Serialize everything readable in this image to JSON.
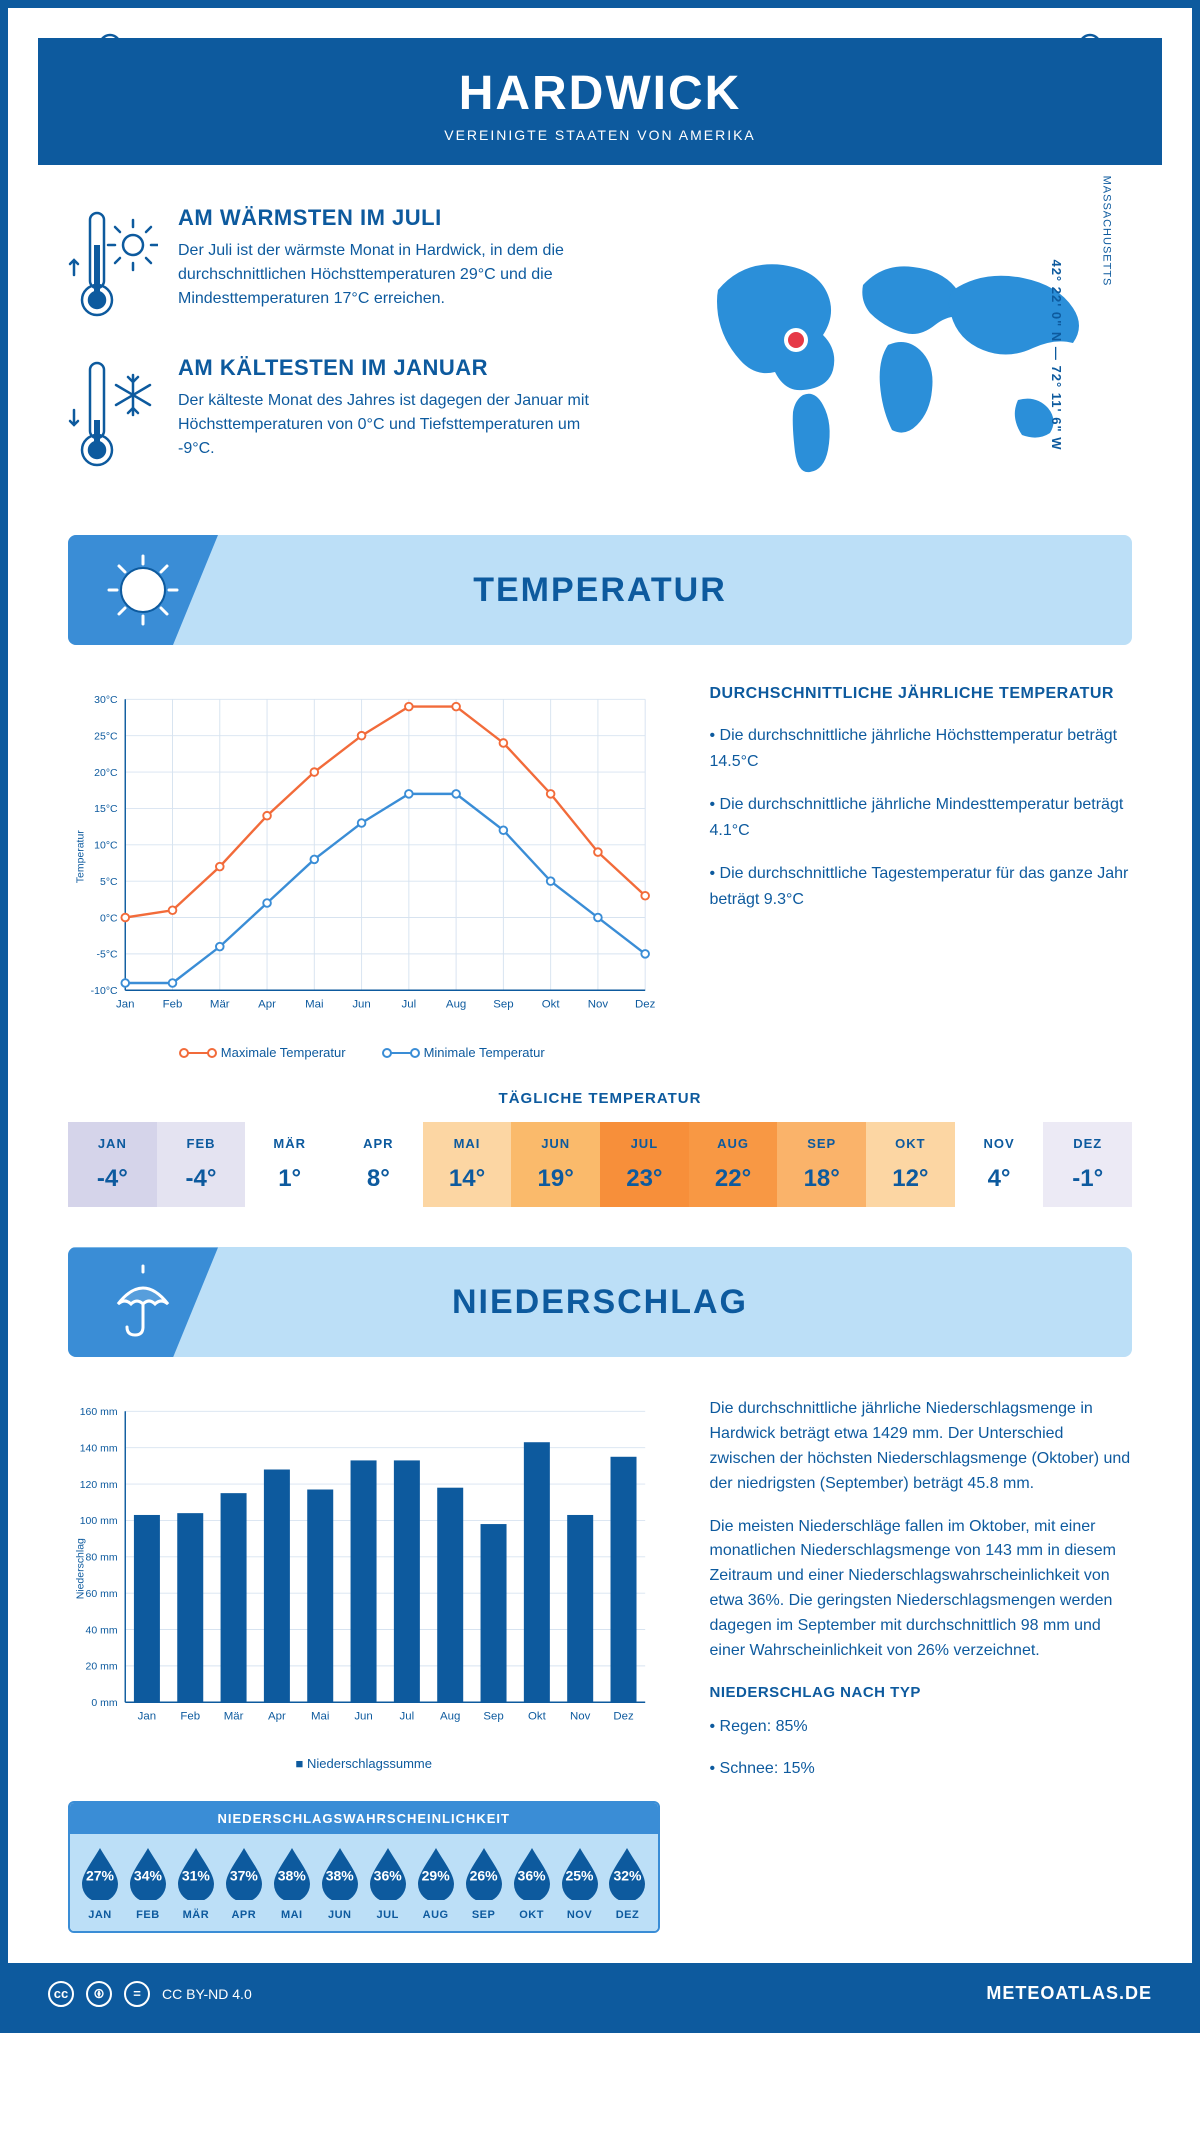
{
  "colors": {
    "primary": "#0d5a9e",
    "accent": "#3a8dd6",
    "light": "#bcdff7",
    "max_line": "#f26b3a",
    "min_line": "#3a8dd6",
    "marker": "#e63946"
  },
  "header": {
    "title": "HARDWICK",
    "subtitle": "VEREINIGTE STAATEN VON AMERIKA"
  },
  "warmest": {
    "title": "AM WÄRMSTEN IM JULI",
    "text": "Der Juli ist der wärmste Monat in Hardwick, in dem die durchschnittlichen Höchsttemperaturen 29°C und die Mindesttemperaturen 17°C erreichen."
  },
  "coldest": {
    "title": "AM KÄLTESTEN IM JANUAR",
    "text": "Der kälteste Monat des Jahres ist dagegen der Januar mit Höchsttemperaturen von 0°C und Tiefsttemperaturen um -9°C."
  },
  "map": {
    "state": "MASSACHUSETTS",
    "coords": "42° 22' 0\" N — 72° 11' 6\" W"
  },
  "temp_section": {
    "banner": "TEMPERATUR",
    "info_title": "DURCHSCHNITTLICHE JÄHRLICHE TEMPERATUR",
    "bullets": [
      "• Die durchschnittliche jährliche Höchsttemperatur beträgt 14.5°C",
      "• Die durchschnittliche jährliche Mindesttemperatur beträgt 4.1°C",
      "• Die durchschnittliche Tagestemperatur für das ganze Jahr beträgt 9.3°C"
    ],
    "chart": {
      "type": "line",
      "ylabel": "Temperatur",
      "months": [
        "Jan",
        "Feb",
        "Mär",
        "Apr",
        "Mai",
        "Jun",
        "Jul",
        "Aug",
        "Sep",
        "Okt",
        "Nov",
        "Dez"
      ],
      "ylim": [
        -10,
        30
      ],
      "ytick_step": 5,
      "max_series": {
        "label": "Maximale Temperatur",
        "color": "#f26b3a",
        "values": [
          0,
          1,
          7,
          14,
          20,
          25,
          29,
          29,
          24,
          17,
          9,
          3
        ]
      },
      "min_series": {
        "label": "Minimale Temperatur",
        "color": "#3a8dd6",
        "values": [
          -9,
          -9,
          -4,
          2,
          8,
          13,
          17,
          17,
          12,
          5,
          0,
          -5
        ]
      },
      "grid_color": "#d7e3f0",
      "axis_color": "#0d5a9e",
      "line_width": 2.5,
      "marker_radius": 4
    },
    "daily": {
      "title": "TÄGLICHE TEMPERATUR",
      "months": [
        "JAN",
        "FEB",
        "MÄR",
        "APR",
        "MAI",
        "JUN",
        "JUL",
        "AUG",
        "SEP",
        "OKT",
        "NOV",
        "DEZ"
      ],
      "values": [
        "-4°",
        "-4°",
        "1°",
        "8°",
        "14°",
        "19°",
        "23°",
        "22°",
        "18°",
        "12°",
        "4°",
        "-1°"
      ],
      "bg_colors": [
        "#d5d4ea",
        "#e4e3f1",
        "#ffffff",
        "#ffffff",
        "#fcd6a3",
        "#faba6b",
        "#f78f3a",
        "#f89844",
        "#fab36a",
        "#fcd6a3",
        "#ffffff",
        "#eceaf5"
      ]
    }
  },
  "precip_section": {
    "banner": "NIEDERSCHLAG",
    "chart": {
      "type": "bar",
      "ylabel": "Niederschlag",
      "legend": "Niederschlagssumme",
      "months": [
        "Jan",
        "Feb",
        "Mär",
        "Apr",
        "Mai",
        "Jun",
        "Jul",
        "Aug",
        "Sep",
        "Okt",
        "Nov",
        "Dez"
      ],
      "values": [
        103,
        104,
        115,
        128,
        117,
        133,
        133,
        118,
        98,
        143,
        103,
        135
      ],
      "ylim": [
        0,
        160
      ],
      "ytick_step": 20,
      "bar_color": "#0d5a9e",
      "grid_color": "#d7e3f0",
      "axis_color": "#0d5a9e",
      "bar_width": 0.6
    },
    "text1": "Die durchschnittliche jährliche Niederschlagsmenge in Hardwick beträgt etwa 1429 mm. Der Unterschied zwischen der höchsten Niederschlagsmenge (Oktober) und der niedrigsten (September) beträgt 45.8 mm.",
    "text2": "Die meisten Niederschläge fallen im Oktober, mit einer monatlichen Niederschlagsmenge von 143 mm in diesem Zeitraum und einer Niederschlagswahrscheinlichkeit von etwa 36%. Die geringsten Niederschlagsmengen werden dagegen im September mit durchschnittlich 98 mm und einer Wahrscheinlichkeit von 26% verzeichnet.",
    "type_title": "NIEDERSCHLAG NACH TYP",
    "type_bullets": [
      "• Regen: 85%",
      "• Schnee: 15%"
    ],
    "prob": {
      "title": "NIEDERSCHLAGSWAHRSCHEINLICHKEIT",
      "months": [
        "JAN",
        "FEB",
        "MÄR",
        "APR",
        "MAI",
        "JUN",
        "JUL",
        "AUG",
        "SEP",
        "OKT",
        "NOV",
        "DEZ"
      ],
      "values": [
        "27%",
        "34%",
        "31%",
        "37%",
        "38%",
        "38%",
        "36%",
        "29%",
        "26%",
        "36%",
        "25%",
        "32%"
      ],
      "drop_color": "#0d5a9e"
    }
  },
  "footer": {
    "license": "CC BY-ND 4.0",
    "site": "METEOATLAS.DE"
  }
}
